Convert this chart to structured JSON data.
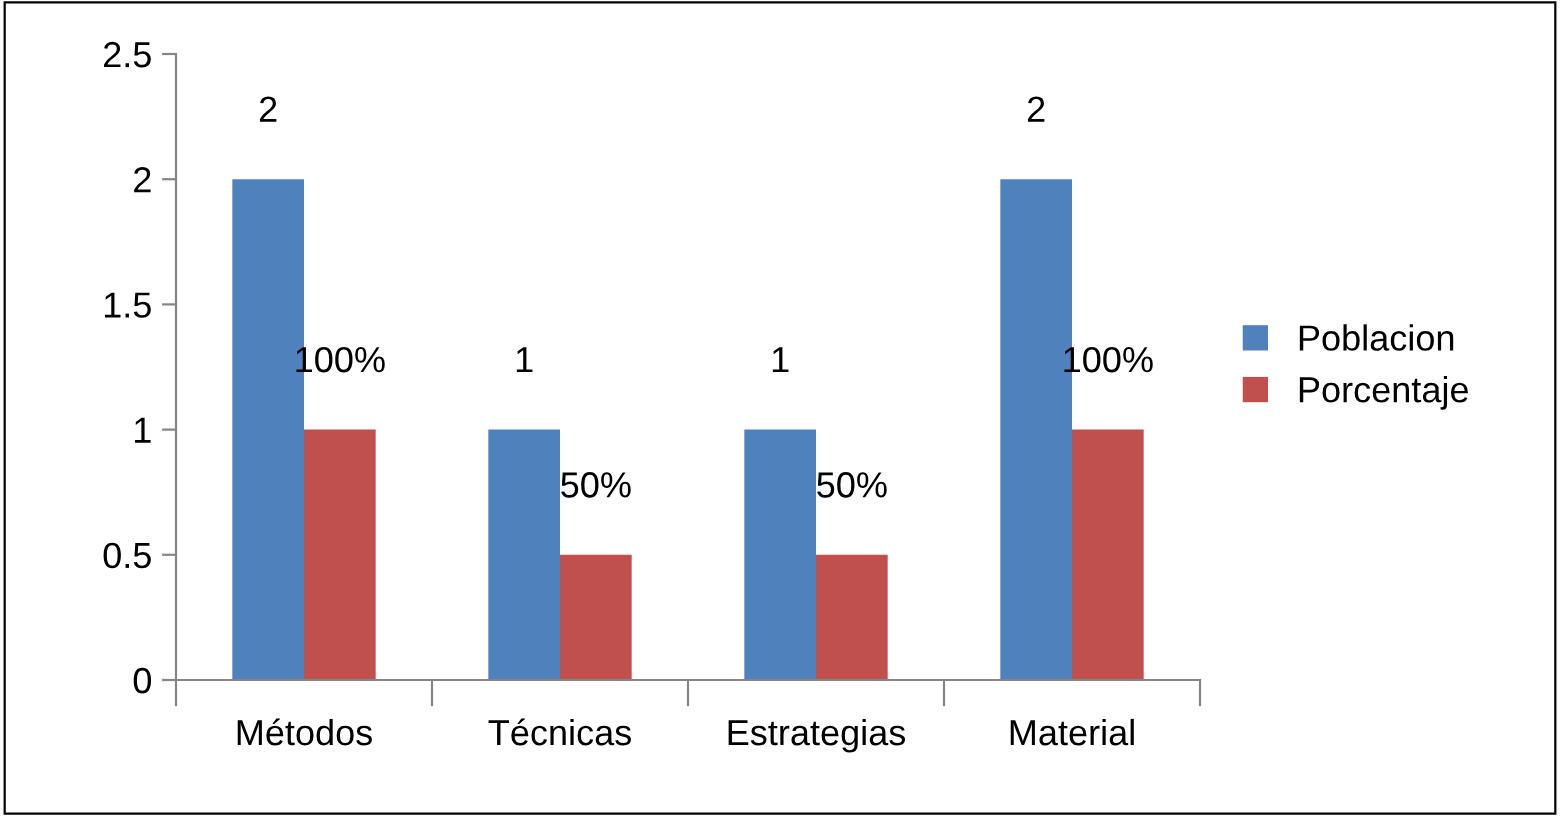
{
  "chart_data": {
    "type": "bar",
    "categories": [
      "Métodos",
      "Técnicas",
      "Estrategias",
      "Material"
    ],
    "series": [
      {
        "name": "Poblacion",
        "color": "#4f81bd",
        "values": [
          2,
          1,
          1,
          2
        ],
        "value_labels": [
          "2",
          "1",
          "1",
          "2"
        ]
      },
      {
        "name": "Porcentaje",
        "color": "#c0504d",
        "values": [
          1,
          0.5,
          0.5,
          1
        ],
        "value_labels": [
          "100%",
          "50%",
          "50%",
          "100%"
        ]
      }
    ],
    "ylim": [
      0,
      2.5
    ],
    "yticks": [
      0,
      0.5,
      1,
      1.5,
      2,
      2.5
    ],
    "grid": false,
    "legend": "right"
  }
}
